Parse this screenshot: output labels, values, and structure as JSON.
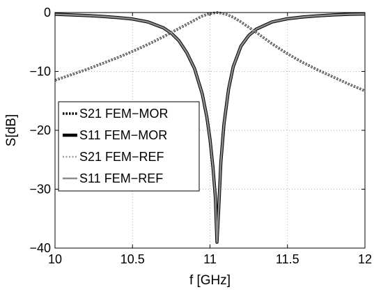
{
  "chart_data": {
    "type": "line",
    "title": "",
    "xlabel": "f [GHz]",
    "ylabel": "S[dB]",
    "xlim": [
      10,
      12
    ],
    "ylim": [
      -40,
      0
    ],
    "xticks": [
      10,
      10.5,
      11,
      11.5,
      12
    ],
    "yticks": [
      0,
      -10,
      -20,
      -30,
      -40
    ],
    "xtick_labels": [
      "10",
      "10.5",
      "11",
      "11.5",
      "12"
    ],
    "ytick_labels": [
      "0",
      "−10",
      "−20",
      "−30",
      "−40"
    ],
    "grid": true,
    "legend_position": "left",
    "series": [
      {
        "name": "S21 FEM−MOR",
        "color": "#000000",
        "style": "dotted",
        "x": [
          10.0,
          10.1,
          10.2,
          10.3,
          10.4,
          10.5,
          10.6,
          10.7,
          10.8,
          10.9,
          10.95,
          11.0,
          11.05,
          11.1,
          11.15,
          11.2,
          11.3,
          11.4,
          11.5,
          11.6,
          11.7,
          11.8,
          11.9,
          12.0
        ],
        "y": [
          -11.5,
          -10.6,
          -9.7,
          -8.7,
          -7.7,
          -6.6,
          -5.4,
          -4.1,
          -2.7,
          -1.3,
          -0.6,
          -0.15,
          0.0,
          -0.25,
          -0.8,
          -1.6,
          -3.4,
          -5.3,
          -7.0,
          -8.5,
          -9.8,
          -11.0,
          -12.2,
          -13.3
        ]
      },
      {
        "name": "S11 FEM−MOR",
        "color": "#000000",
        "style": "solid",
        "x": [
          10.0,
          10.1,
          10.2,
          10.3,
          10.4,
          10.5,
          10.6,
          10.7,
          10.75,
          10.8,
          10.85,
          10.9,
          10.95,
          10.98,
          11.0,
          11.02,
          11.035,
          11.045,
          11.055,
          11.07,
          11.09,
          11.12,
          11.15,
          11.2,
          11.25,
          11.3,
          11.4,
          11.5,
          11.6,
          11.7,
          11.8,
          11.9,
          12.0
        ],
        "y": [
          -0.3,
          -0.4,
          -0.5,
          -0.65,
          -0.85,
          -1.1,
          -1.6,
          -2.6,
          -3.5,
          -4.8,
          -6.8,
          -9.5,
          -13.8,
          -17.8,
          -21.5,
          -26.5,
          -31.5,
          -39.0,
          -34.0,
          -25.5,
          -19.0,
          -13.0,
          -9.2,
          -5.7,
          -3.9,
          -2.8,
          -1.6,
          -1.05,
          -0.75,
          -0.55,
          -0.4,
          -0.3,
          -0.25
        ]
      },
      {
        "name": "S21 FEM−REF",
        "color": "#9a9a9a",
        "style": "dotted",
        "x": [
          10.0,
          10.1,
          10.2,
          10.3,
          10.4,
          10.5,
          10.6,
          10.7,
          10.8,
          10.9,
          10.95,
          11.0,
          11.05,
          11.1,
          11.15,
          11.2,
          11.3,
          11.4,
          11.5,
          11.6,
          11.7,
          11.8,
          11.9,
          12.0
        ],
        "y": [
          -11.5,
          -10.6,
          -9.7,
          -8.7,
          -7.7,
          -6.6,
          -5.4,
          -4.1,
          -2.7,
          -1.3,
          -0.6,
          -0.15,
          0.0,
          -0.25,
          -0.8,
          -1.6,
          -3.4,
          -5.3,
          -7.0,
          -8.5,
          -9.8,
          -11.0,
          -12.2,
          -13.3
        ]
      },
      {
        "name": "S11 FEM−REF",
        "color": "#8c8c8c",
        "style": "solid",
        "x": [
          10.0,
          10.1,
          10.2,
          10.3,
          10.4,
          10.5,
          10.6,
          10.7,
          10.75,
          10.8,
          10.85,
          10.9,
          10.95,
          10.98,
          11.0,
          11.02,
          11.035,
          11.045,
          11.055,
          11.07,
          11.09,
          11.12,
          11.15,
          11.2,
          11.25,
          11.3,
          11.4,
          11.5,
          11.6,
          11.7,
          11.8,
          11.9,
          12.0
        ],
        "y": [
          -0.3,
          -0.4,
          -0.5,
          -0.65,
          -0.85,
          -1.1,
          -1.6,
          -2.6,
          -3.5,
          -4.8,
          -6.8,
          -9.5,
          -13.8,
          -17.8,
          -21.5,
          -26.5,
          -31.5,
          -39.0,
          -34.0,
          -25.5,
          -19.0,
          -13.0,
          -9.2,
          -5.7,
          -3.9,
          -2.8,
          -1.6,
          -1.05,
          -0.75,
          -0.55,
          -0.4,
          -0.3,
          -0.25
        ]
      }
    ]
  }
}
